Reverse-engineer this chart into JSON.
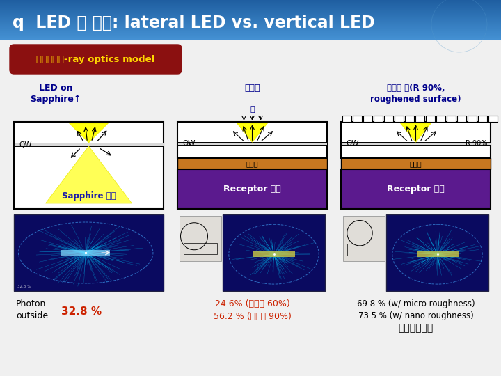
{
  "title": "q  LED 칩 효율: lateral LED vs. vertical LED",
  "subtitle_box": "광추출효율-ray optics model",
  "col1_title_line1": "LED on",
  "col1_title_line2": "Sapphire↑",
  "col2_title_line1": "수직형",
  "col2_title_line2": "칩",
  "col3_title_line1": "수직형 칩(R 90%,",
  "col3_title_line2": "roughened surface)",
  "col1_qw": "QW",
  "col2_qw": "QW",
  "col3_qw": "QW",
  "col1_sub": "Sapphire 기판",
  "col2_reflector": "반사판",
  "col2_sub": "Receptor 기판",
  "col3_reflector": "반사판",
  "col3_sub": "Receptor 기판",
  "col3_r90": "R 90%",
  "col1_value_label": "Photon\noutside",
  "col1_value": "32.8 %",
  "col2_value_line1": "24.6% (반사율 60%)",
  "col2_value_line2": "56.2 % (반사율 90%)",
  "col3_value_line1": "69.8 % (w/ micro roughness)",
  "col3_value_line2": "73.5 % (w/ nano roughness)",
  "col3_value_line3": "한국광기술원",
  "bg_main_color": "#e8e8e8",
  "title_bg_start": "#2060a0",
  "title_bg_end": "#4090d0",
  "title_color": "#ffffff",
  "subtitle_bg": "#8b1010",
  "subtitle_text_color": "#ffd700",
  "col_title_color": "#00008b",
  "reflector_color": "#c87820",
  "receptor_color": "#5b1a8e",
  "value_color": "#cc2200",
  "col3_value_color": "#000000"
}
